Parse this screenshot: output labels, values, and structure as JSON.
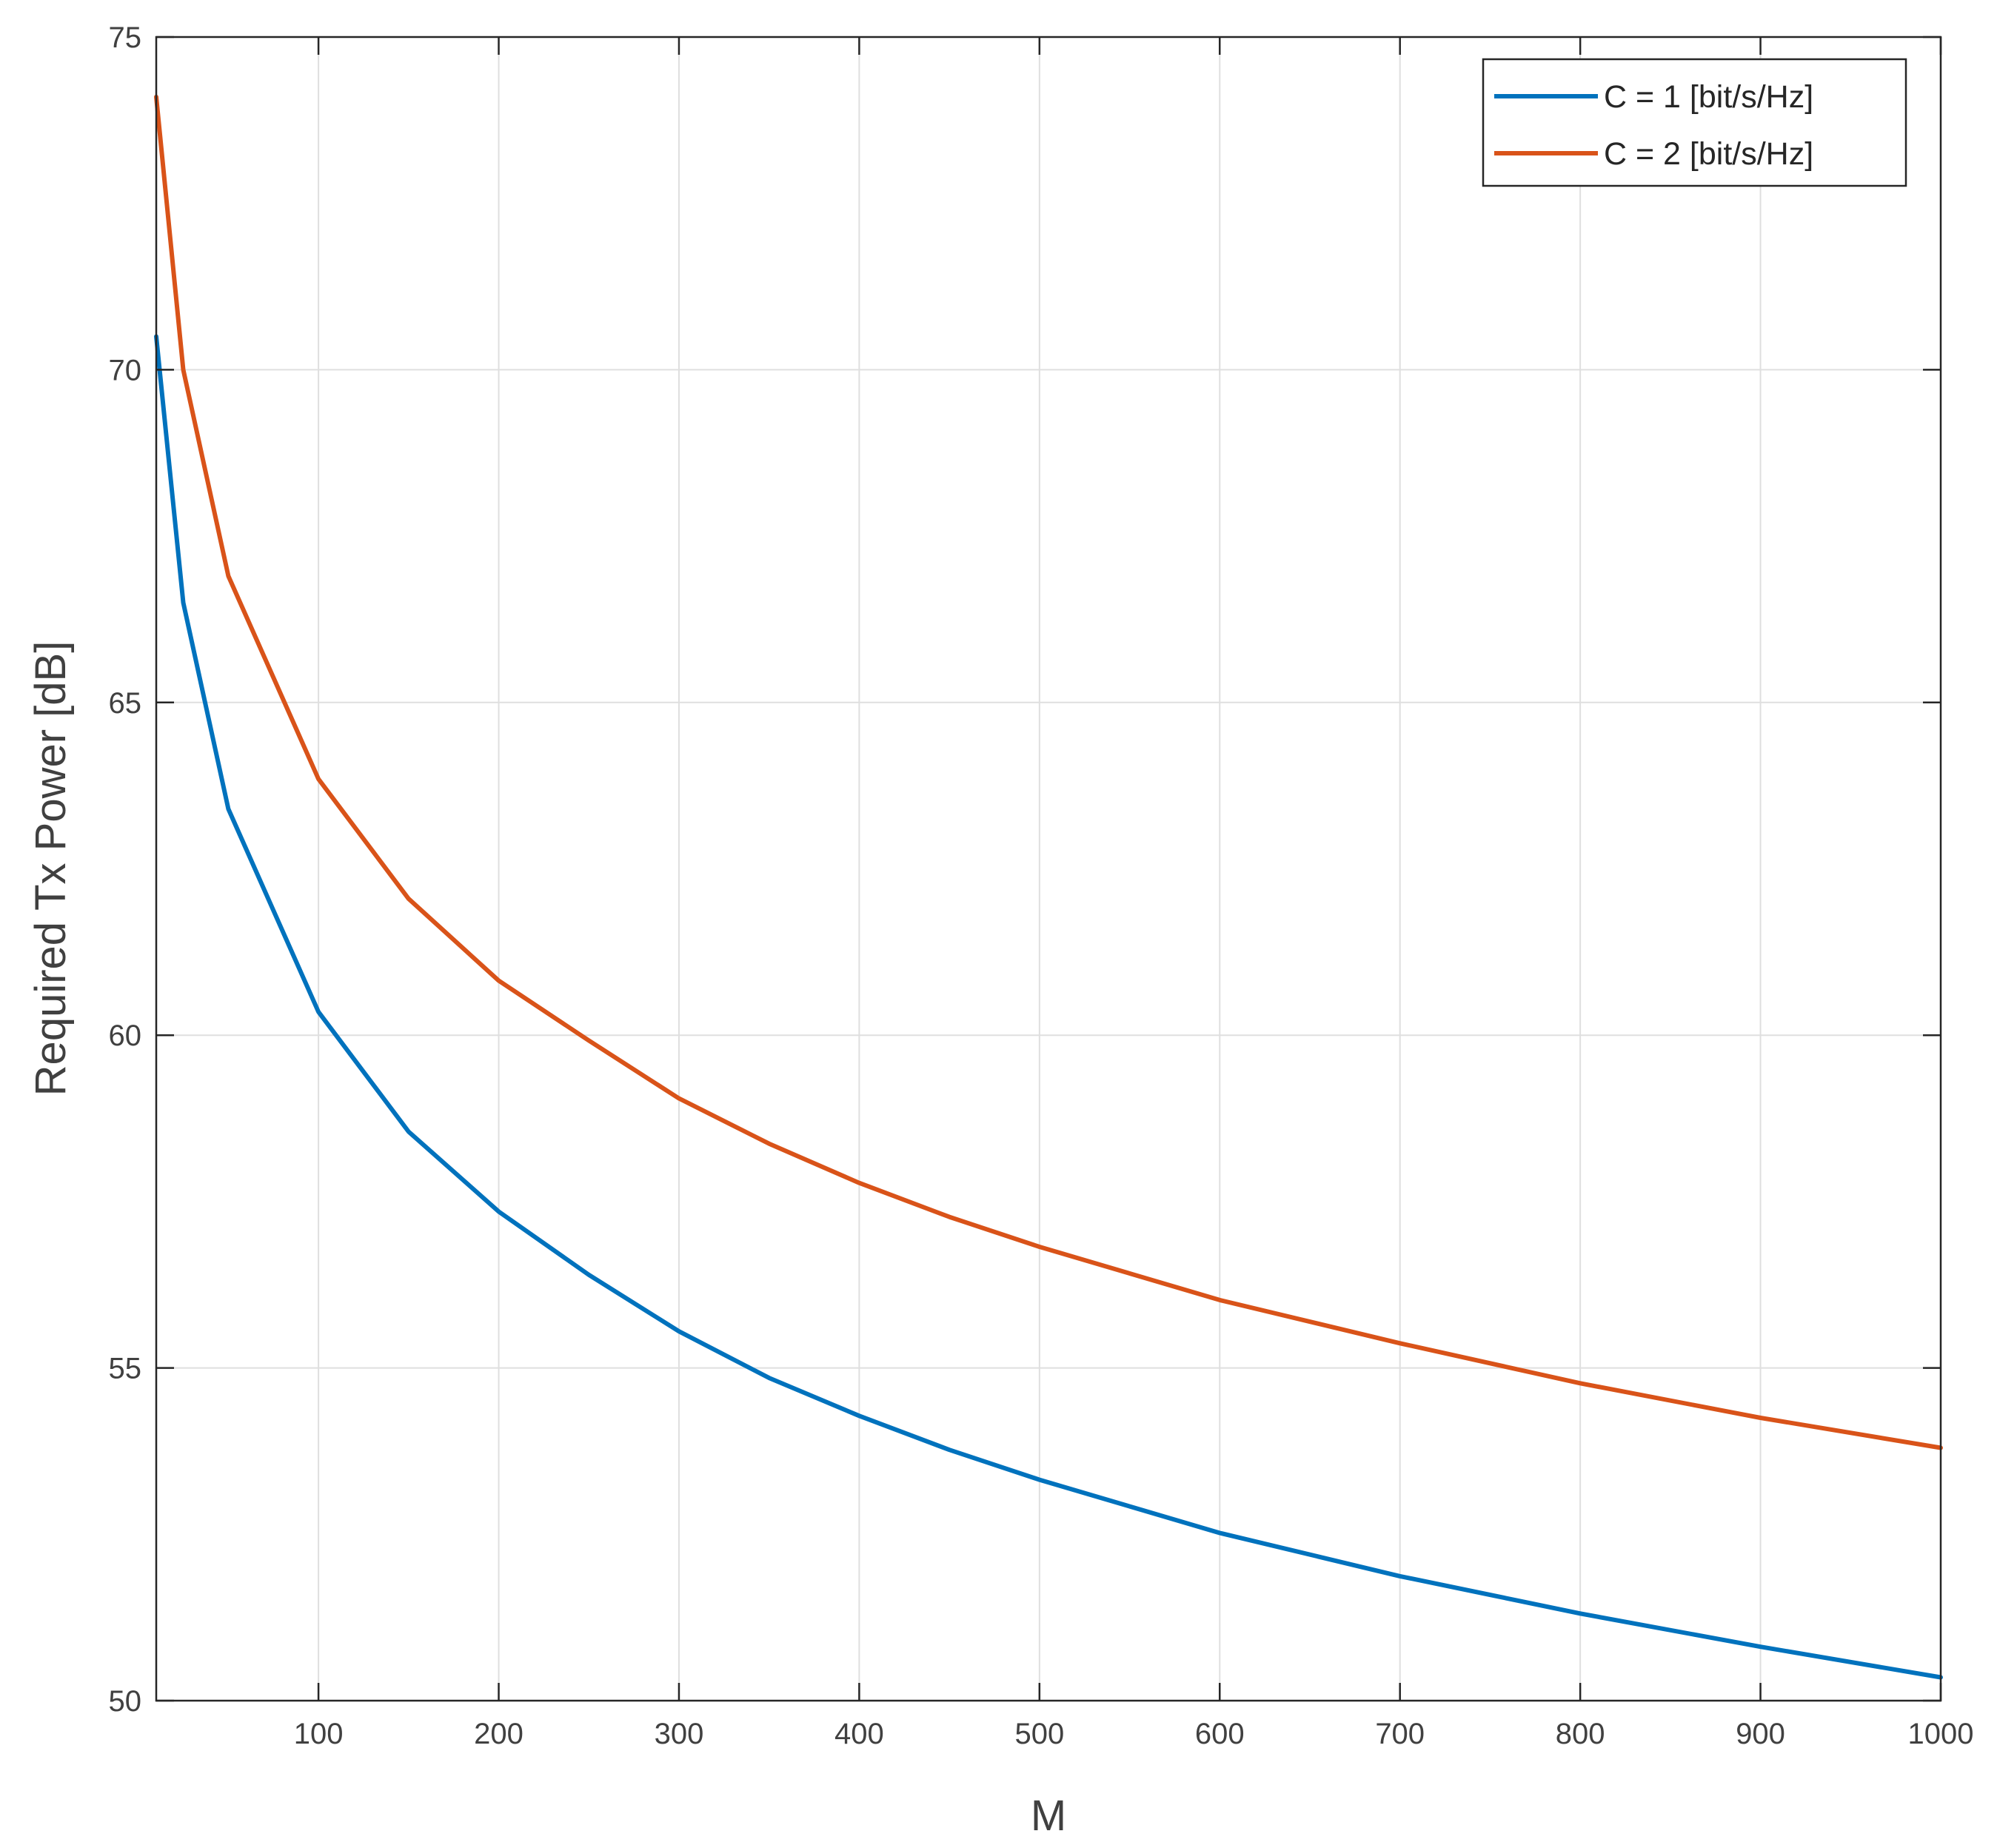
{
  "chart_data": {
    "type": "line",
    "xlabel": "M",
    "ylabel": "Required Tx Power [dB]",
    "xlim": [
      10,
      1000
    ],
    "ylim": [
      50,
      75
    ],
    "xticks": [
      100,
      200,
      300,
      400,
      500,
      600,
      700,
      800,
      900,
      1000
    ],
    "yticks": [
      50,
      55,
      60,
      65,
      70,
      75
    ],
    "grid": true,
    "legend_position": "top-right",
    "series": [
      {
        "name": "C = 1 [bit/s/Hz]",
        "color": "#0072BD",
        "x": [
          10,
          25,
          50,
          100,
          150,
          200,
          250,
          300,
          350,
          400,
          450,
          500,
          600,
          700,
          800,
          900,
          1000
        ],
        "y": [
          70.5,
          66.5,
          63.4,
          60.35,
          58.55,
          57.35,
          56.4,
          55.55,
          54.85,
          54.28,
          53.77,
          53.32,
          52.52,
          51.87,
          51.31,
          50.81,
          50.35
        ]
      },
      {
        "name": "C = 2 [bit/s/Hz]",
        "color": "#D95319",
        "x": [
          10,
          25,
          50,
          100,
          150,
          200,
          250,
          300,
          350,
          400,
          450,
          500,
          600,
          700,
          800,
          900,
          1000
        ],
        "y": [
          74.1,
          70.0,
          66.9,
          63.85,
          62.05,
          60.82,
          59.92,
          59.05,
          58.37,
          57.78,
          57.27,
          56.82,
          56.02,
          55.37,
          54.77,
          54.25,
          53.8
        ]
      }
    ]
  }
}
